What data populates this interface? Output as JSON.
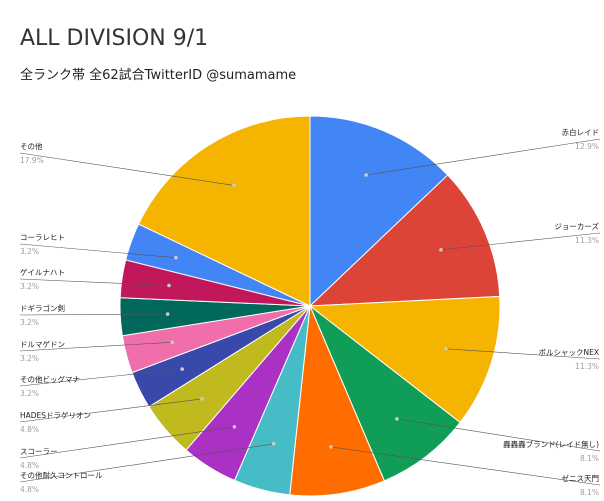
{
  "title": "ALL DIVISION 9/1",
  "subtitle": "全ランク帯 全62試合TwitterID @sumamame",
  "chart_data": {
    "type": "pie",
    "title": "ALL DIVISION 9/1",
    "subtitle": "全ランク帯 全62試合TwitterID @sumamame",
    "slices": [
      {
        "label": "赤白レイド",
        "value": 12.9,
        "percent_label": "12.9%",
        "color": "#4285f4"
      },
      {
        "label": "ジョーカーズ",
        "value": 11.3,
        "percent_label": "11.3%",
        "color": "#db4437"
      },
      {
        "label": "ボルシャックNEX",
        "value": 11.3,
        "percent_label": "11.3%",
        "color": "#f4b400"
      },
      {
        "label": "轟轟轟ブランド(レイド無し)",
        "value": 8.1,
        "percent_label": "8.1%",
        "color": "#0f9d58"
      },
      {
        "label": "ゼニス天門",
        "value": 8.1,
        "percent_label": "8.1%",
        "color": "#ff6d00"
      },
      {
        "label": "その他耐久コントロール",
        "value": 4.8,
        "percent_label": "4.8%",
        "color": "#46bdc6"
      },
      {
        "label": "スコーラー",
        "value": 4.8,
        "percent_label": "4.8%",
        "color": "#ab30c4"
      },
      {
        "label": "HADESドラゲリオン",
        "value": 4.8,
        "percent_label": "4.8%",
        "color": "#c0ba1f"
      },
      {
        "label": "その他ビッグマナ",
        "value": 3.2,
        "percent_label": "3.2%",
        "color": "#3949ab"
      },
      {
        "label": "ドルマゲドン",
        "value": 3.2,
        "percent_label": "3.2%",
        "color": "#f06ea9"
      },
      {
        "label": "ドギラゴン剣",
        "value": 3.2,
        "percent_label": "3.2%",
        "color": "#00695c"
      },
      {
        "label": "ゲイルナハト",
        "value": 3.2,
        "percent_label": "3.2%",
        "color": "#c2185b"
      },
      {
        "label": "コーラレヒト",
        "value": 3.2,
        "percent_label": "3.2%",
        "color": "#4285f4"
      },
      {
        "label": "その他",
        "value": 17.9,
        "percent_label": "17.9%",
        "color": "#f4b400"
      }
    ],
    "start_angle": "12 o'clock",
    "direction": "clockwise",
    "legend": "side labels with leader lines"
  }
}
